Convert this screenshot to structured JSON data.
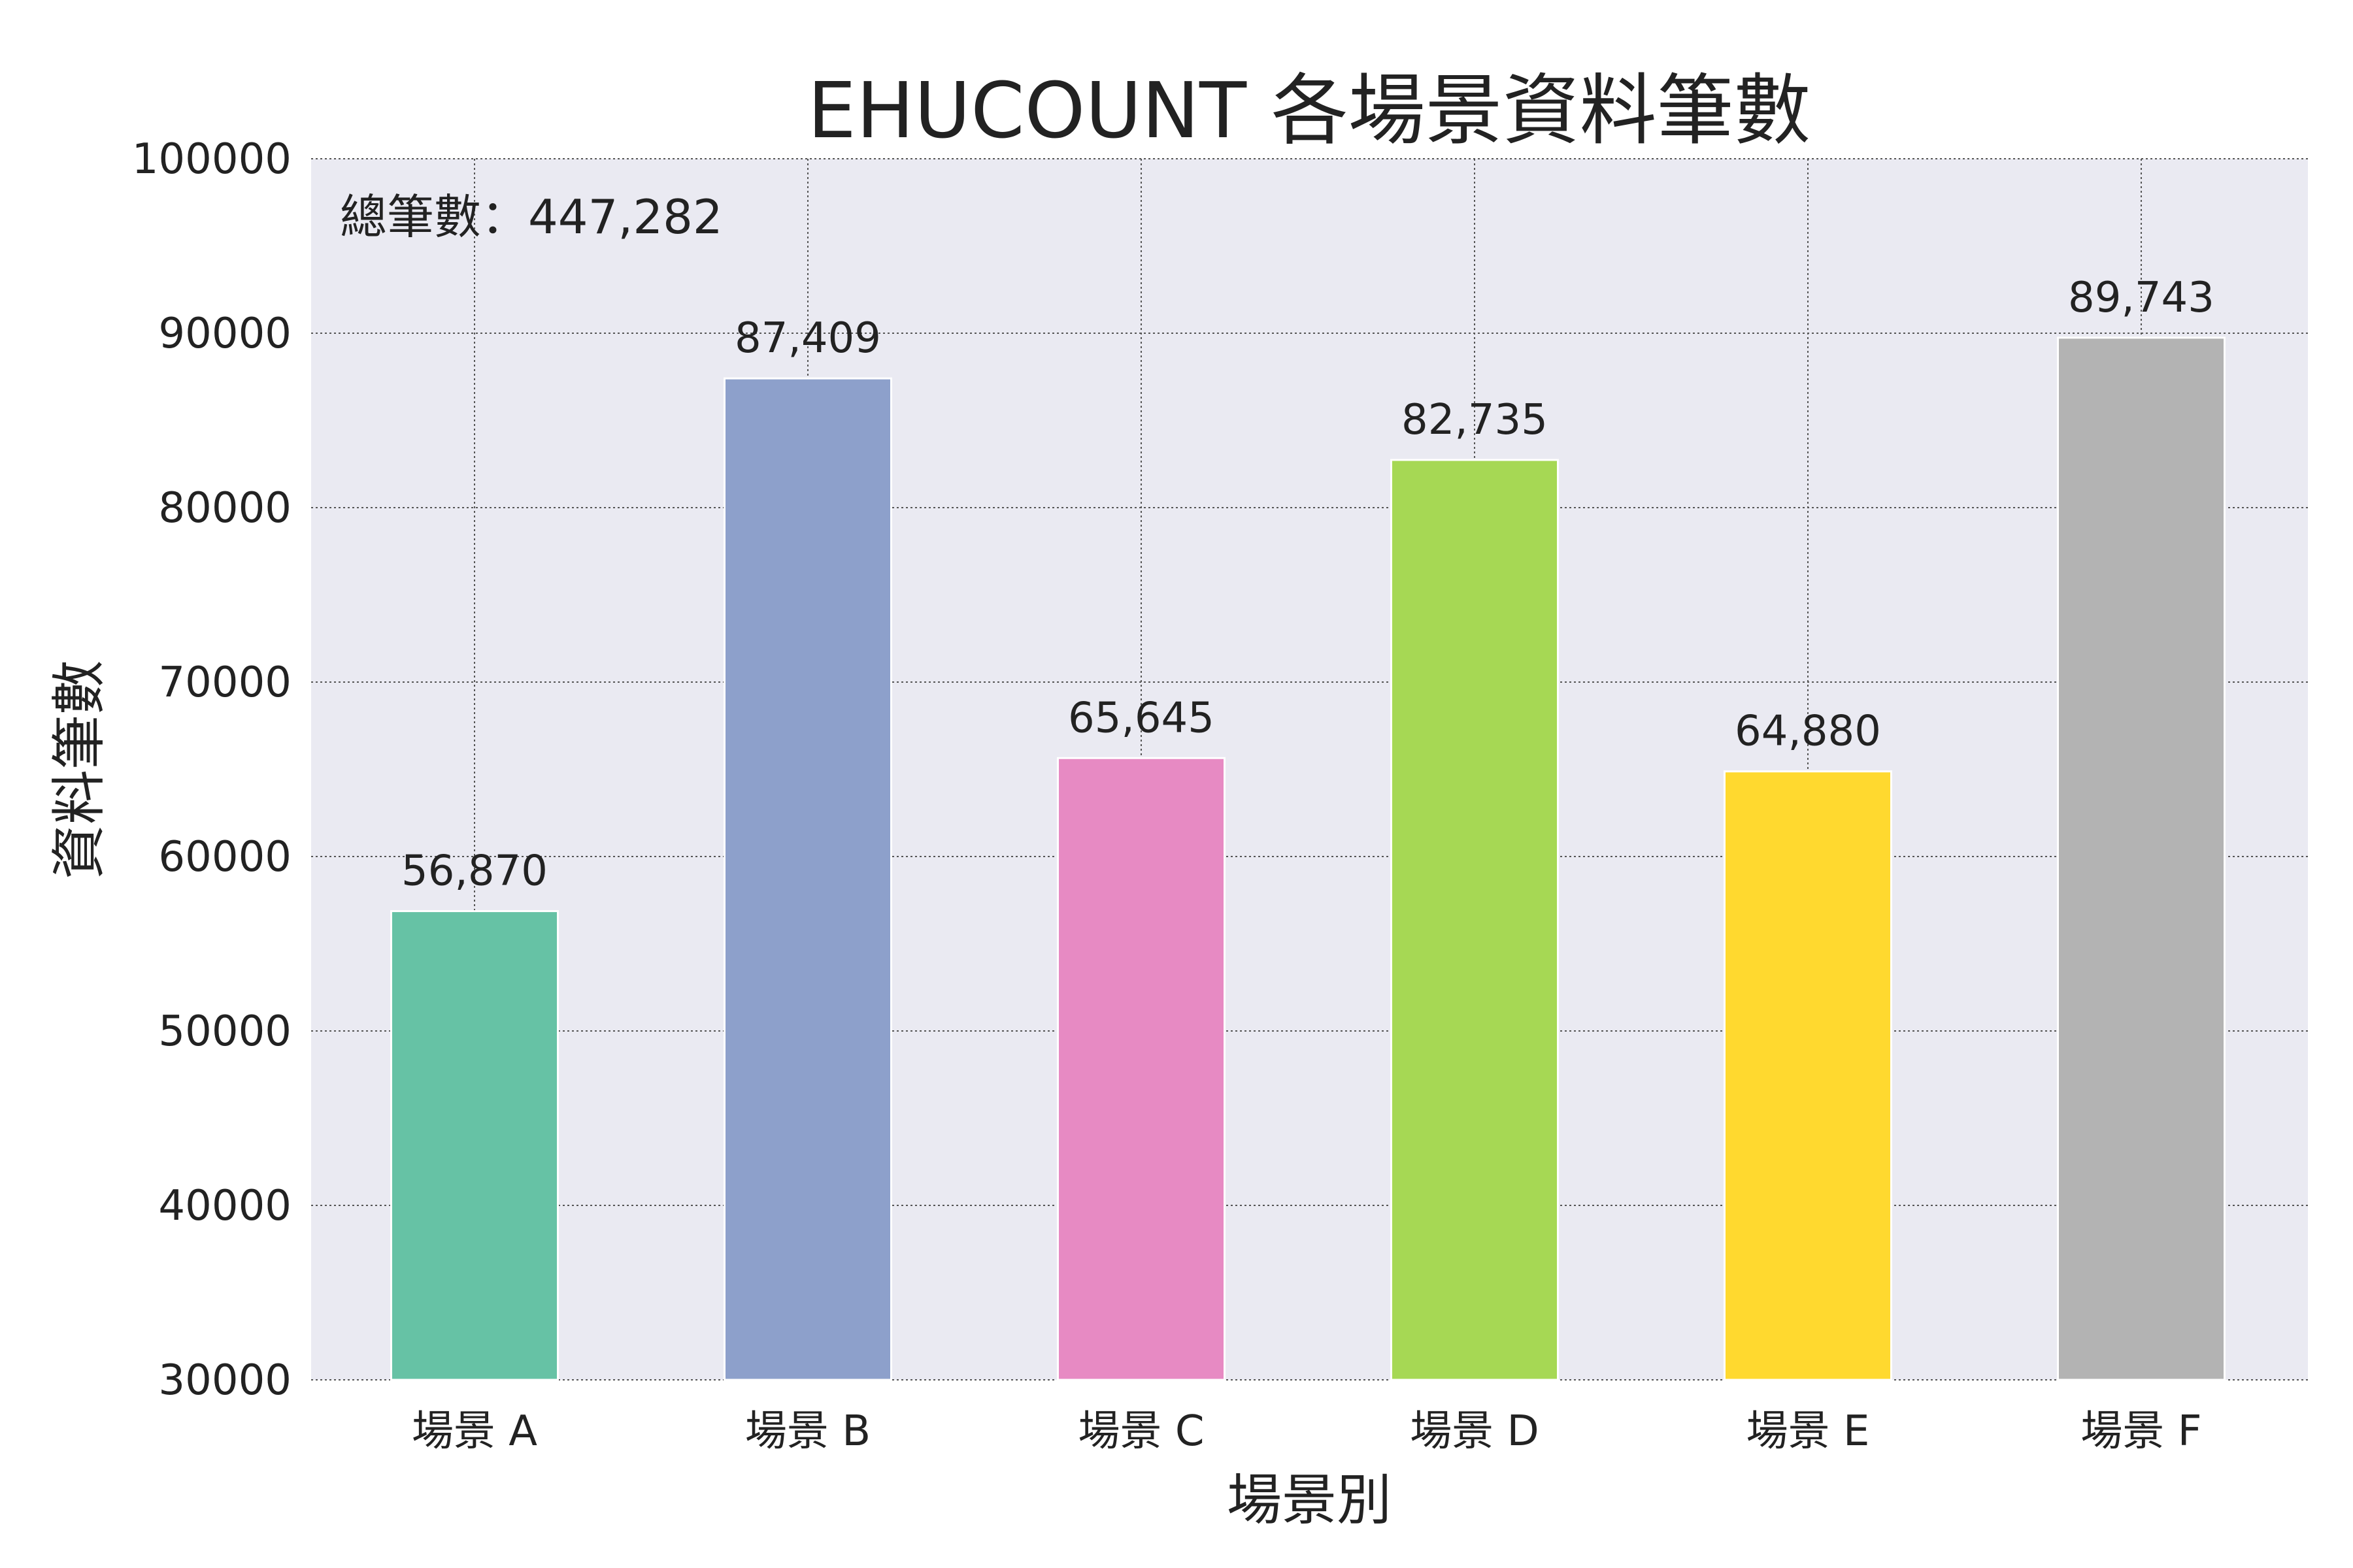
{
  "chart_data": {
    "type": "bar",
    "title": "EHUCOUNT 各場景資料筆數",
    "xlabel": "場景別",
    "ylabel": "資料筆數",
    "categories": [
      "場景 A",
      "場景 B",
      "場景 C",
      "場景 D",
      "場景 E",
      "場景 F"
    ],
    "values": [
      56870,
      87409,
      65645,
      82735,
      64880,
      89743
    ],
    "value_labels": [
      "56,870",
      "87,409",
      "65,645",
      "82,735",
      "64,880",
      "89,743"
    ],
    "colors": [
      "#66c2a5",
      "#8da0cb",
      "#e78ac3",
      "#a6d854",
      "#ffd92f",
      "#b3b3b3"
    ],
    "ylim": [
      30000,
      100000
    ],
    "yticks": [
      30000,
      40000,
      50000,
      60000,
      70000,
      80000,
      90000,
      100000
    ],
    "ytick_labels": [
      "30000",
      "40000",
      "50000",
      "60000",
      "70000",
      "80000",
      "90000",
      "100000"
    ],
    "grid": true,
    "annotation": "總筆數：447,282",
    "annotation_position": "top-left",
    "background_color": "#eaeaf2"
  }
}
